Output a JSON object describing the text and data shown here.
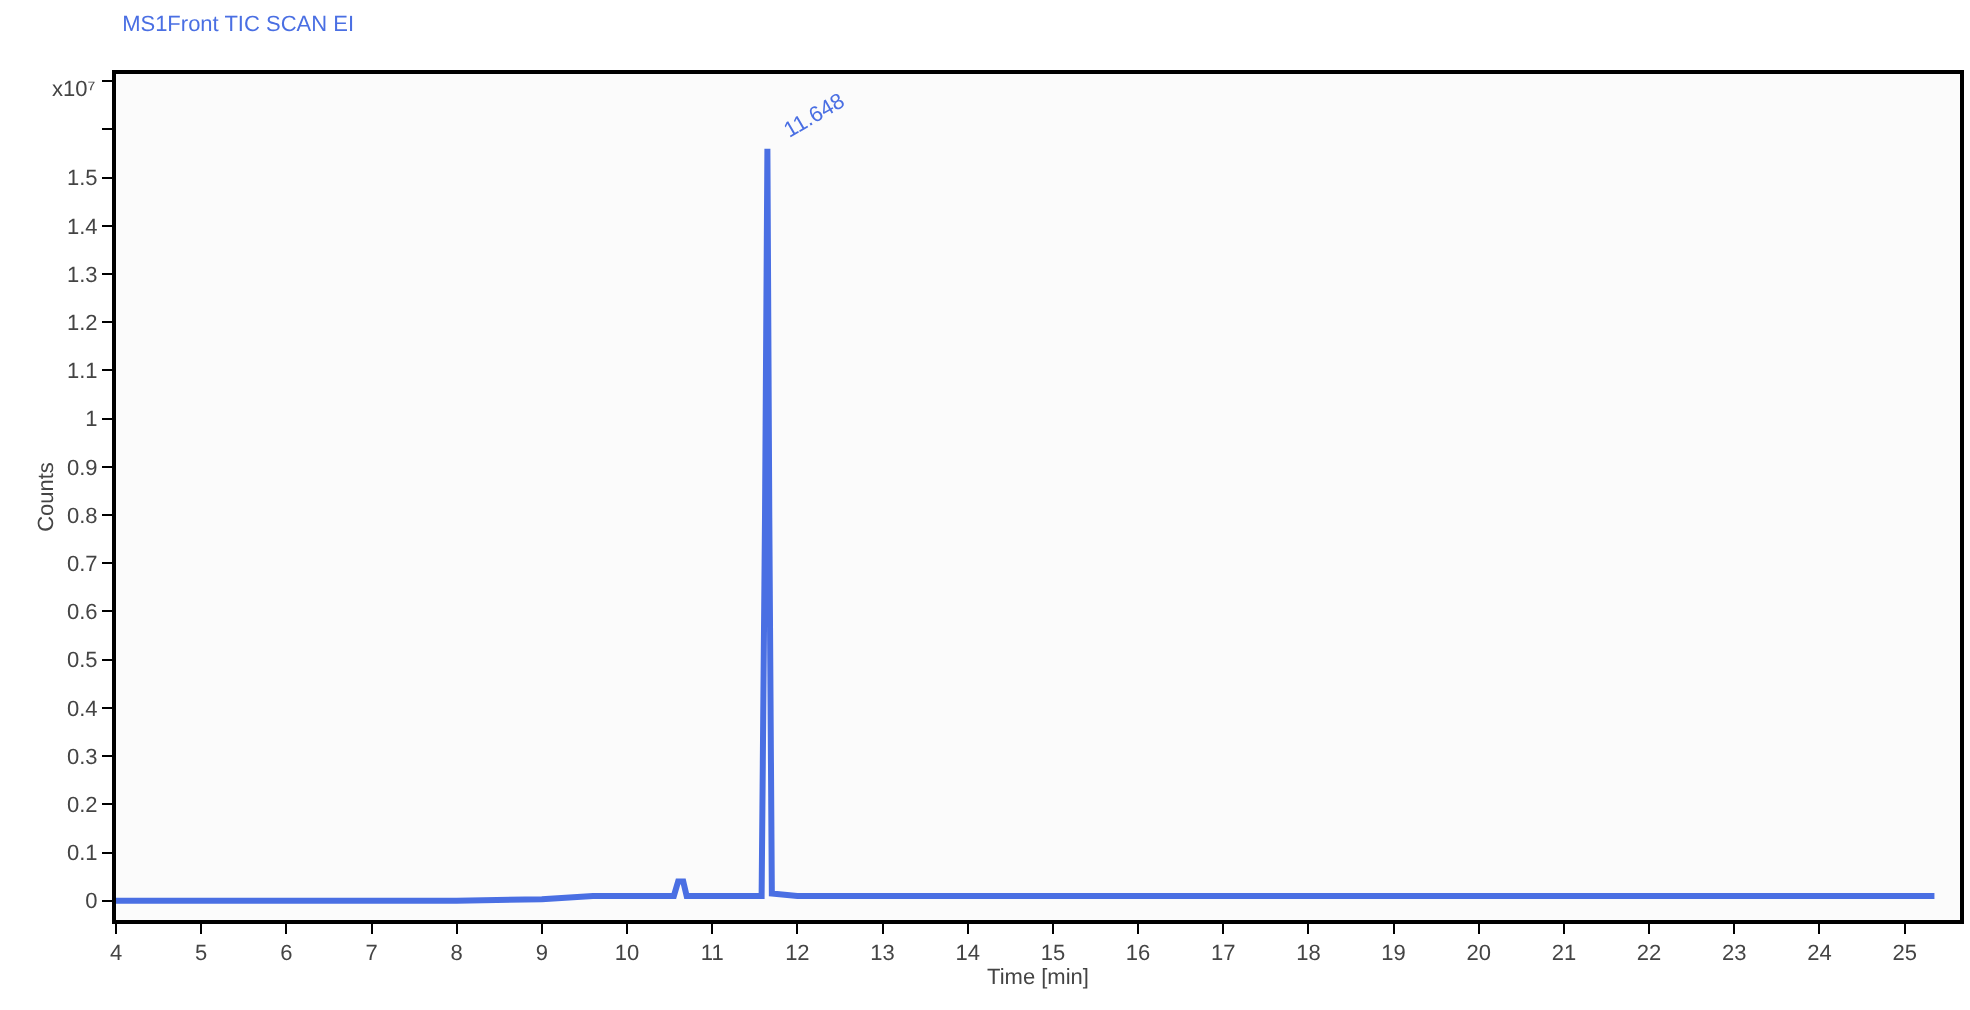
{
  "chart_data": {
    "type": "line",
    "title": "MS1Front TIC SCAN EI",
    "xlabel": "Time [min]",
    "ylabel": "Counts",
    "x": [
      4,
      6,
      8,
      9,
      9.6,
      10.55,
      10.6,
      10.66,
      10.7,
      11.58,
      11.62,
      11.648,
      11.67,
      11.7,
      12,
      15,
      20,
      25.35
    ],
    "series": [
      {
        "color": "#4a6fe3",
        "values": [
          0,
          0,
          0,
          0.003,
          0.01,
          0.01,
          0.04,
          0.04,
          0.01,
          0.01,
          0.8,
          1.56,
          0.8,
          0.015,
          0.01,
          0.01,
          0.01,
          0.01
        ]
      }
    ],
    "annotations": [
      {
        "text": "11.648",
        "x": 11.648,
        "y": 1.56
      },
      "x10⁷"
    ],
    "xlim": [
      4,
      25.65
    ],
    "ylim": [
      -0.04,
      1.715
    ],
    "xticks": [
      4,
      5,
      6,
      7,
      8,
      9,
      10,
      11,
      12,
      13,
      14,
      15,
      16,
      17,
      18,
      19,
      20,
      21,
      22,
      23,
      24,
      25
    ],
    "yticks": [
      0,
      0.1,
      0.2,
      0.3,
      0.4,
      0.5,
      0.6,
      0.7,
      0.8,
      0.9,
      1,
      1.1,
      1.2,
      1.3,
      1.4,
      1.5,
      {
        "value": 1.6,
        "label": null
      },
      {
        "value": 1.7,
        "label": null
      }
    ],
    "marker": "none",
    "line_style": "solid"
  }
}
